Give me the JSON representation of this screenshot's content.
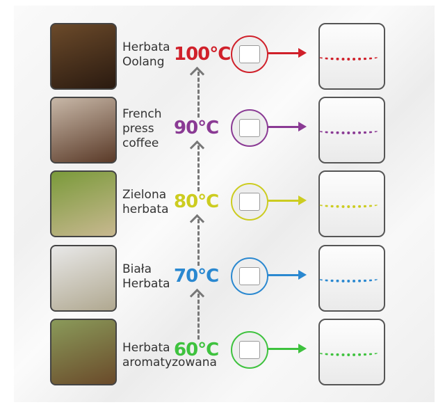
{
  "rows": [
    {
      "name": "Herbata Oolang",
      "temp": "100°C",
      "color": "#d0202a",
      "photo": [
        "#6b4a2a",
        "#2a1a10"
      ]
    },
    {
      "name": "French press coffee",
      "temp": "90°C",
      "color": "#8a3a94",
      "photo": [
        "#c8b8a8",
        "#5a3a28"
      ]
    },
    {
      "name": "Zielona herbata",
      "temp": "80°C",
      "color": "#cccc20",
      "photo": [
        "#7a9a3a",
        "#c8b890"
      ]
    },
    {
      "name": "Biała Herbata",
      "temp": "70°C",
      "color": "#2a88d0",
      "photo": [
        "#e8e8e8",
        "#b0a890"
      ]
    },
    {
      "name": "Herbata aromatyzowana",
      "temp": "60°C",
      "color": "#3ec23e",
      "photo": [
        "#8a9a5a",
        "#6a4a2a"
      ]
    }
  ]
}
